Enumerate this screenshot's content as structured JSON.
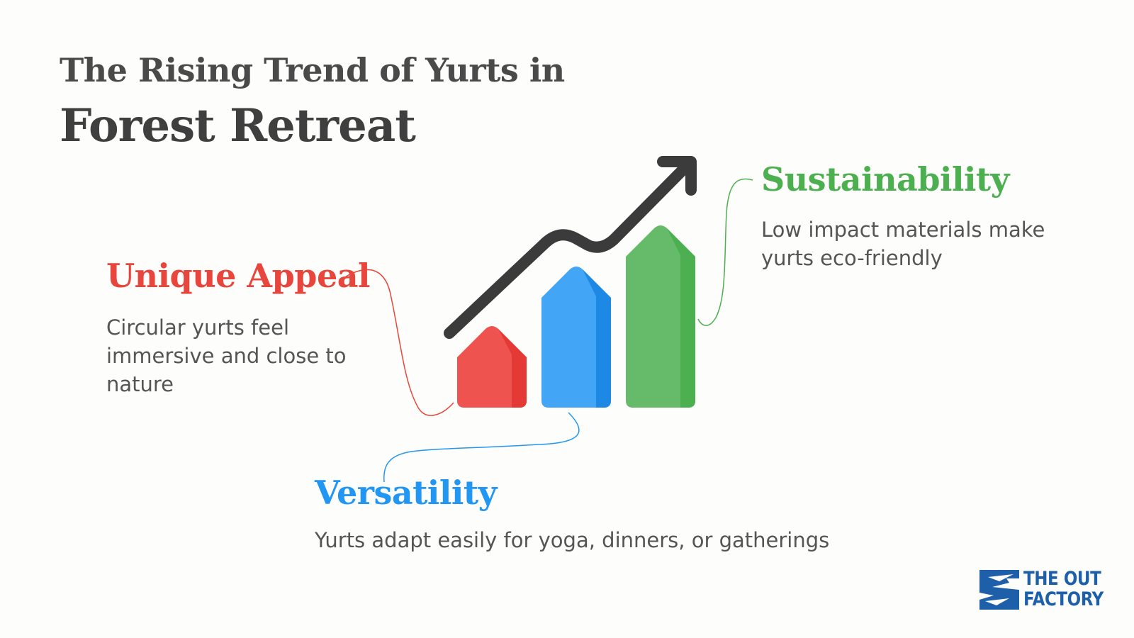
{
  "title": {
    "line1": "The Rising Trend of Yurts in",
    "line2": "Forest Retreat"
  },
  "sections": {
    "unique_appeal": {
      "heading": "Unique Appeal",
      "description": "Circular yurts feel immersive and close to nature",
      "color": "#e8453c"
    },
    "sustainability": {
      "heading": "Sustainability",
      "description": "Low impact materials make yurts eco-friendly",
      "color": "#4caf50"
    },
    "versatility": {
      "heading": "Versatility",
      "description": "Yurts adapt easily for yoga, dinners, or gatherings",
      "color": "#2196f3"
    }
  },
  "graphic": {
    "icons": [
      "red-house-bar-icon",
      "blue-house-bar-icon",
      "green-house-bar-icon",
      "trend-arrow-icon"
    ],
    "arrow_color": "#3b3b3b"
  },
  "logo": {
    "line1": "THE OUT",
    "line2": "FACTORY",
    "color": "#1d5fa8"
  }
}
